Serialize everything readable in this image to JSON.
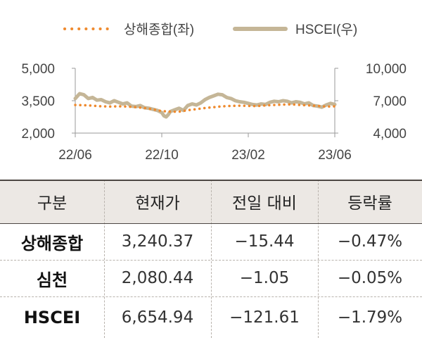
{
  "chart_data": {
    "type": "line",
    "legend": [
      {
        "name": "상해종합(좌)",
        "color": "#ef8a2e",
        "style": "dotted"
      },
      {
        "name": "HSCEI(우)",
        "color": "#c5b697",
        "style": "solid"
      }
    ],
    "legend_placement": "top-center",
    "x_ticks": [
      "22/06",
      "22/10",
      "23/02",
      "23/06"
    ],
    "y_left": {
      "ticks": [
        "2,000",
        "3,500",
        "5,000"
      ],
      "range": [
        2000,
        5000
      ]
    },
    "y_right": {
      "ticks": [
        "4,000",
        "7,000",
        "10,000"
      ],
      "range": [
        4000,
        10000
      ]
    },
    "grid": false,
    "series": [
      {
        "name": "상해종합(좌)",
        "axis": "left",
        "x": [
          0,
          0.4,
          0.8,
          1.2,
          1.6,
          2.0,
          2.4,
          2.8,
          3.2,
          3.6,
          4.0,
          4.4,
          4.8,
          5.2,
          5.6,
          6.0,
          6.4,
          6.8,
          7.2,
          7.6,
          8.0,
          8.4,
          8.8,
          9.2,
          9.6,
          10.0,
          10.4,
          10.8,
          11.2,
          11.6,
          12.0
        ],
        "values": [
          3300,
          3290,
          3270,
          3240,
          3230,
          3240,
          3230,
          3200,
          3160,
          3100,
          3020,
          2990,
          2990,
          3060,
          3110,
          3160,
          3200,
          3240,
          3260,
          3270,
          3260,
          3250,
          3280,
          3300,
          3320,
          3330,
          3300,
          3280,
          3260,
          3230,
          3240
        ]
      },
      {
        "name": "HSCEI(우)",
        "axis": "right",
        "x": [
          0,
          0.2,
          0.4,
          0.6,
          0.8,
          1.0,
          1.2,
          1.4,
          1.6,
          1.8,
          2.0,
          2.2,
          2.4,
          2.6,
          2.8,
          3.0,
          3.2,
          3.4,
          3.6,
          3.8,
          4.0,
          4.1,
          4.2,
          4.3,
          4.4,
          4.6,
          4.8,
          5.0,
          5.2,
          5.4,
          5.6,
          5.8,
          6.0,
          6.2,
          6.4,
          6.6,
          6.8,
          7.0,
          7.2,
          7.4,
          7.6,
          7.8,
          8.0,
          8.2,
          8.4,
          8.6,
          8.8,
          9.0,
          9.2,
          9.4,
          9.6,
          9.8,
          10.0,
          10.2,
          10.4,
          10.6,
          10.8,
          11.0,
          11.2,
          11.4,
          11.6,
          11.8,
          12.0
        ],
        "values": [
          7200,
          7650,
          7550,
          7200,
          7300,
          7050,
          7100,
          6900,
          6800,
          7000,
          6850,
          6700,
          6800,
          6500,
          6450,
          6550,
          6350,
          6300,
          6200,
          6100,
          5900,
          5600,
          5500,
          5700,
          6000,
          6150,
          6300,
          6100,
          6550,
          6700,
          6600,
          6800,
          7100,
          7300,
          7450,
          7600,
          7550,
          7300,
          7200,
          7000,
          6900,
          6850,
          6750,
          6650,
          6600,
          6700,
          6650,
          6850,
          6950,
          6900,
          7000,
          6950,
          6800,
          6900,
          6850,
          6700,
          6800,
          6550,
          6500,
          6400,
          6600,
          6750,
          6650
        ]
      }
    ]
  },
  "table": {
    "headers": [
      "구분",
      "현재가",
      "전일 대비",
      "등락률"
    ],
    "rows": [
      {
        "name": "상해종합",
        "price": "3,240.37",
        "change": "−15.44",
        "rate": "−0.47%"
      },
      {
        "name": "심천",
        "price": "2,080.44",
        "change": "−1.05",
        "rate": "−0.05%"
      },
      {
        "name": "HSCEI",
        "price": "6,654.94",
        "change": "−121.61",
        "rate": "−1.79%"
      }
    ]
  },
  "colors": {
    "header_bg": "#ece8e4",
    "border": "#4d4743"
  }
}
